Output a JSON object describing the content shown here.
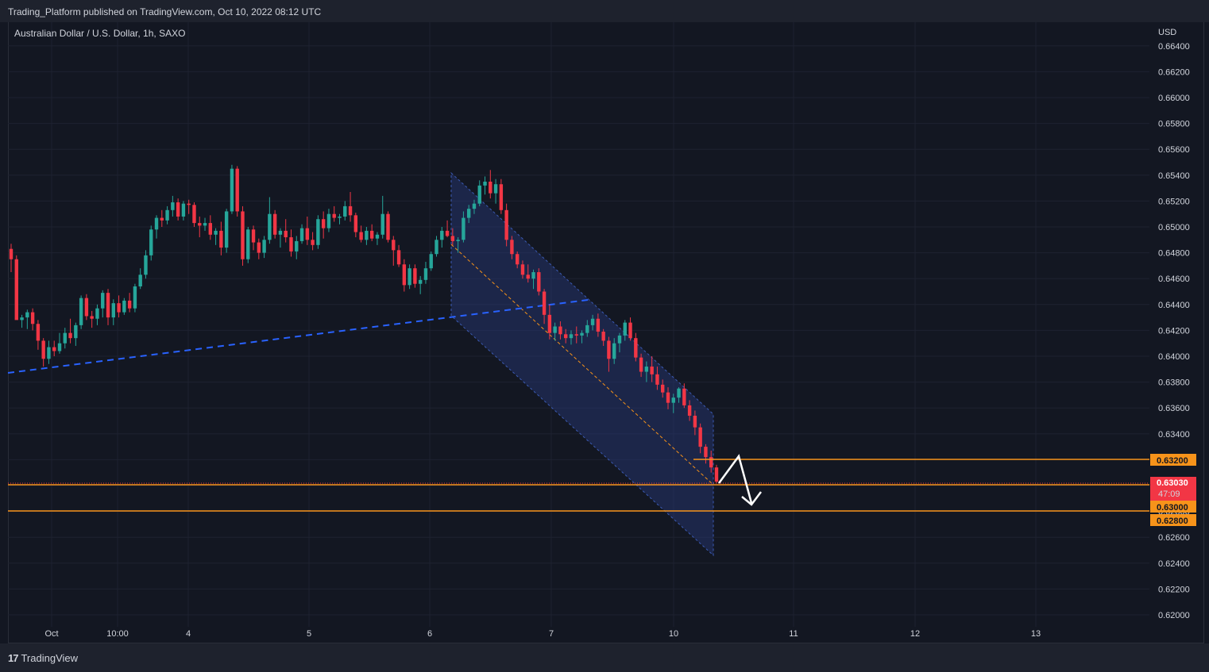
{
  "header": {
    "published_by": "Trading_Platform published on TradingView.com, Oct 10, 2022 08:12 UTC"
  },
  "symbol": {
    "title": "Australian Dollar / U.S. Dollar, 1h, SAXO"
  },
  "footer": {
    "logo_mark": "17",
    "logo_text": "TradingView"
  },
  "colors": {
    "background": "#131722",
    "bull": "#26a69a",
    "bear": "#f23645",
    "level": "#f7931a",
    "trendline": "#2962ff",
    "channel": "#283a7a"
  },
  "price_axis": {
    "currency": "USD",
    "ticks": [
      "0.66400",
      "0.66200",
      "0.66000",
      "0.65800",
      "0.65600",
      "0.65400",
      "0.65200",
      "0.65000",
      "0.64800",
      "0.64600",
      "0.64400",
      "0.64200",
      "0.64000",
      "0.63800",
      "0.63600",
      "0.63400",
      "0.63200",
      "0.63000",
      "0.62800",
      "0.62600",
      "0.62400",
      "0.62200",
      "0.62000"
    ]
  },
  "time_axis": {
    "labels": [
      "Oct",
      "10:00",
      "4",
      "5",
      "6",
      "7",
      "10",
      "11",
      "12",
      "13"
    ]
  },
  "price_tags": {
    "level_upper": "0.63200",
    "current_price": "0.63030",
    "countdown": "47:09",
    "level_mid": "0.63000",
    "level_lower": "0.62800"
  },
  "chart_data": {
    "type": "candlestick",
    "title": "Australian Dollar / U.S. Dollar, 1h, SAXO",
    "ylabel": "USD",
    "ylim": [
      0.6195,
      0.6655
    ],
    "x_labels": [
      "Oct",
      "10:00",
      "4",
      "5",
      "6",
      "7",
      "10",
      "11",
      "12",
      "13"
    ],
    "candles_ohlc": [
      [
        0.6483,
        0.6487,
        0.6465,
        0.6475
      ],
      [
        0.6475,
        0.6478,
        0.6442,
        0.6428
      ],
      [
        0.6428,
        0.6432,
        0.6422,
        0.643
      ],
      [
        0.643,
        0.6436,
        0.6421,
        0.6434
      ],
      [
        0.6434,
        0.6437,
        0.642,
        0.6425
      ],
      [
        0.6425,
        0.6428,
        0.6405,
        0.6412
      ],
      [
        0.6412,
        0.6414,
        0.6392,
        0.6398
      ],
      [
        0.6398,
        0.6412,
        0.6394,
        0.6407
      ],
      [
        0.6407,
        0.6412,
        0.64,
        0.6404
      ],
      [
        0.6404,
        0.6418,
        0.6402,
        0.641
      ],
      [
        0.641,
        0.6422,
        0.6406,
        0.6418
      ],
      [
        0.6418,
        0.6429,
        0.641,
        0.6414
      ],
      [
        0.6414,
        0.6426,
        0.6408,
        0.6424
      ],
      [
        0.6424,
        0.6447,
        0.6421,
        0.6445
      ],
      [
        0.6445,
        0.6448,
        0.6428,
        0.6431
      ],
      [
        0.6431,
        0.6435,
        0.6422,
        0.6429
      ],
      [
        0.6429,
        0.644,
        0.6424,
        0.6437
      ],
      [
        0.6437,
        0.6451,
        0.643,
        0.6449
      ],
      [
        0.6449,
        0.6452,
        0.6424,
        0.643
      ],
      [
        0.643,
        0.6444,
        0.6424,
        0.6441
      ],
      [
        0.6441,
        0.6447,
        0.643,
        0.6434
      ],
      [
        0.6434,
        0.6445,
        0.6432,
        0.6443
      ],
      [
        0.6443,
        0.6449,
        0.6434,
        0.6437
      ],
      [
        0.6437,
        0.6456,
        0.6434,
        0.6454
      ],
      [
        0.6454,
        0.6468,
        0.6452,
        0.6463
      ],
      [
        0.6463,
        0.6482,
        0.646,
        0.6478
      ],
      [
        0.6478,
        0.6501,
        0.6474,
        0.6498
      ],
      [
        0.6498,
        0.6509,
        0.6491,
        0.6507
      ],
      [
        0.6507,
        0.6513,
        0.65,
        0.6505
      ],
      [
        0.6505,
        0.6516,
        0.6502,
        0.6513
      ],
      [
        0.6513,
        0.6524,
        0.6508,
        0.6519
      ],
      [
        0.6519,
        0.6522,
        0.6505,
        0.6508
      ],
      [
        0.6508,
        0.652,
        0.6505,
        0.6518
      ],
      [
        0.6518,
        0.6521,
        0.651,
        0.6517
      ],
      [
        0.6517,
        0.6519,
        0.65,
        0.6503
      ],
      [
        0.6503,
        0.6508,
        0.6492,
        0.6501
      ],
      [
        0.6501,
        0.6507,
        0.6497,
        0.6503
      ],
      [
        0.6503,
        0.6509,
        0.649,
        0.6494
      ],
      [
        0.6494,
        0.6499,
        0.6486,
        0.6497
      ],
      [
        0.6497,
        0.6504,
        0.6478,
        0.6484
      ],
      [
        0.6484,
        0.6514,
        0.648,
        0.6512
      ],
      [
        0.6512,
        0.6548,
        0.651,
        0.6545
      ],
      [
        0.6545,
        0.6547,
        0.6508,
        0.6512
      ],
      [
        0.6512,
        0.6516,
        0.647,
        0.6475
      ],
      [
        0.6475,
        0.65,
        0.6472,
        0.6498
      ],
      [
        0.6498,
        0.6501,
        0.6482,
        0.6488
      ],
      [
        0.6488,
        0.6491,
        0.6475,
        0.648
      ],
      [
        0.648,
        0.6493,
        0.6476,
        0.649
      ],
      [
        0.649,
        0.6523,
        0.6487,
        0.651
      ],
      [
        0.651,
        0.6513,
        0.6491,
        0.6494
      ],
      [
        0.6494,
        0.6499,
        0.6484,
        0.6497
      ],
      [
        0.6497,
        0.6506,
        0.6488,
        0.6492
      ],
      [
        0.6492,
        0.6498,
        0.6477,
        0.6481
      ],
      [
        0.6481,
        0.6493,
        0.6475,
        0.6489
      ],
      [
        0.6489,
        0.6502,
        0.6487,
        0.6499
      ],
      [
        0.6499,
        0.6508,
        0.6486,
        0.649
      ],
      [
        0.649,
        0.6496,
        0.6482,
        0.6486
      ],
      [
        0.6486,
        0.6509,
        0.6483,
        0.6506
      ],
      [
        0.6506,
        0.6512,
        0.6491,
        0.6499
      ],
      [
        0.6499,
        0.6514,
        0.6496,
        0.651
      ],
      [
        0.651,
        0.6516,
        0.6504,
        0.6507
      ],
      [
        0.6507,
        0.651,
        0.6502,
        0.6508
      ],
      [
        0.6508,
        0.652,
        0.6505,
        0.6516
      ],
      [
        0.6516,
        0.6527,
        0.6504,
        0.6509
      ],
      [
        0.6509,
        0.6511,
        0.6492,
        0.6496
      ],
      [
        0.6496,
        0.6501,
        0.6488,
        0.649
      ],
      [
        0.649,
        0.65,
        0.6486,
        0.6497
      ],
      [
        0.6497,
        0.6502,
        0.6489,
        0.6491
      ],
      [
        0.6491,
        0.6496,
        0.6486,
        0.6494
      ],
      [
        0.6494,
        0.6524,
        0.6491,
        0.651
      ],
      [
        0.651,
        0.6512,
        0.6488,
        0.649
      ],
      [
        0.649,
        0.6493,
        0.647,
        0.6482
      ],
      [
        0.6482,
        0.6486,
        0.6469,
        0.6471
      ],
      [
        0.6471,
        0.6475,
        0.645,
        0.6455
      ],
      [
        0.6455,
        0.6471,
        0.6452,
        0.6468
      ],
      [
        0.6468,
        0.6471,
        0.6453,
        0.6456
      ],
      [
        0.6456,
        0.6462,
        0.6448,
        0.6459
      ],
      [
        0.6459,
        0.6473,
        0.6456,
        0.6468
      ],
      [
        0.6468,
        0.6481,
        0.6466,
        0.6479
      ],
      [
        0.6479,
        0.6493,
        0.6477,
        0.649
      ],
      [
        0.649,
        0.65,
        0.6484,
        0.6497
      ],
      [
        0.6497,
        0.6505,
        0.6492,
        0.6493
      ],
      [
        0.6493,
        0.6499,
        0.6486,
        0.6489
      ],
      [
        0.6489,
        0.6492,
        0.648,
        0.649
      ],
      [
        0.649,
        0.6512,
        0.6488,
        0.6507
      ],
      [
        0.6507,
        0.6517,
        0.6503,
        0.6514
      ],
      [
        0.6514,
        0.6521,
        0.651,
        0.6518
      ],
      [
        0.6518,
        0.6536,
        0.6516,
        0.6532
      ],
      [
        0.6532,
        0.6539,
        0.6525,
        0.6535
      ],
      [
        0.6535,
        0.6544,
        0.6522,
        0.6526
      ],
      [
        0.6526,
        0.6537,
        0.6518,
        0.6533
      ],
      [
        0.6533,
        0.6537,
        0.651,
        0.6513
      ],
      [
        0.6513,
        0.6518,
        0.6485,
        0.649
      ],
      [
        0.649,
        0.6493,
        0.6475,
        0.6479
      ],
      [
        0.6479,
        0.6481,
        0.6468,
        0.6471
      ],
      [
        0.6471,
        0.6474,
        0.646,
        0.6463
      ],
      [
        0.6463,
        0.6471,
        0.6457,
        0.646
      ],
      [
        0.646,
        0.6467,
        0.6452,
        0.6465
      ],
      [
        0.6465,
        0.6468,
        0.6447,
        0.645
      ],
      [
        0.645,
        0.6452,
        0.6425,
        0.6432
      ],
      [
        0.6432,
        0.644,
        0.6413,
        0.6418
      ],
      [
        0.6418,
        0.6426,
        0.6412,
        0.6423
      ],
      [
        0.6423,
        0.6427,
        0.6413,
        0.6417
      ],
      [
        0.6417,
        0.6421,
        0.641,
        0.6414
      ],
      [
        0.6414,
        0.642,
        0.6409,
        0.6417
      ],
      [
        0.6417,
        0.6423,
        0.641,
        0.6416
      ],
      [
        0.6416,
        0.642,
        0.641,
        0.6418
      ],
      [
        0.6418,
        0.6428,
        0.6415,
        0.6424
      ],
      [
        0.6424,
        0.6432,
        0.642,
        0.6429
      ],
      [
        0.6429,
        0.6433,
        0.6415,
        0.6419
      ],
      [
        0.6419,
        0.6421,
        0.6408,
        0.6412
      ],
      [
        0.6412,
        0.6415,
        0.6388,
        0.6398
      ],
      [
        0.6398,
        0.6414,
        0.6394,
        0.641
      ],
      [
        0.641,
        0.6418,
        0.6403,
        0.6416
      ],
      [
        0.6416,
        0.6428,
        0.6412,
        0.6426
      ],
      [
        0.6426,
        0.643,
        0.6412,
        0.6414
      ],
      [
        0.6414,
        0.6418,
        0.6396,
        0.6399
      ],
      [
        0.6399,
        0.6402,
        0.6384,
        0.6388
      ],
      [
        0.6388,
        0.6396,
        0.638,
        0.6392
      ],
      [
        0.6392,
        0.64,
        0.638,
        0.6386
      ],
      [
        0.6386,
        0.6392,
        0.6374,
        0.6378
      ],
      [
        0.6378,
        0.6382,
        0.6368,
        0.6372
      ],
      [
        0.6372,
        0.6376,
        0.6359,
        0.6364
      ],
      [
        0.6364,
        0.6371,
        0.6356,
        0.6368
      ],
      [
        0.6368,
        0.6376,
        0.6364,
        0.6375
      ],
      [
        0.6375,
        0.6379,
        0.636,
        0.6362
      ],
      [
        0.6362,
        0.6366,
        0.635,
        0.6354
      ],
      [
        0.6354,
        0.6358,
        0.6339,
        0.6345
      ],
      [
        0.6345,
        0.6348,
        0.6325,
        0.633
      ],
      [
        0.633,
        0.6332,
        0.6317,
        0.6322
      ],
      [
        0.6322,
        0.6327,
        0.631,
        0.6314
      ],
      [
        0.6314,
        0.6316,
        0.6302,
        0.6303
      ]
    ],
    "levels": [
      0.632,
      0.63,
      0.628
    ],
    "current_price": 0.6303,
    "channel": "descending",
    "projection": "bounce to 0.6320 then drop below 0.6300"
  }
}
